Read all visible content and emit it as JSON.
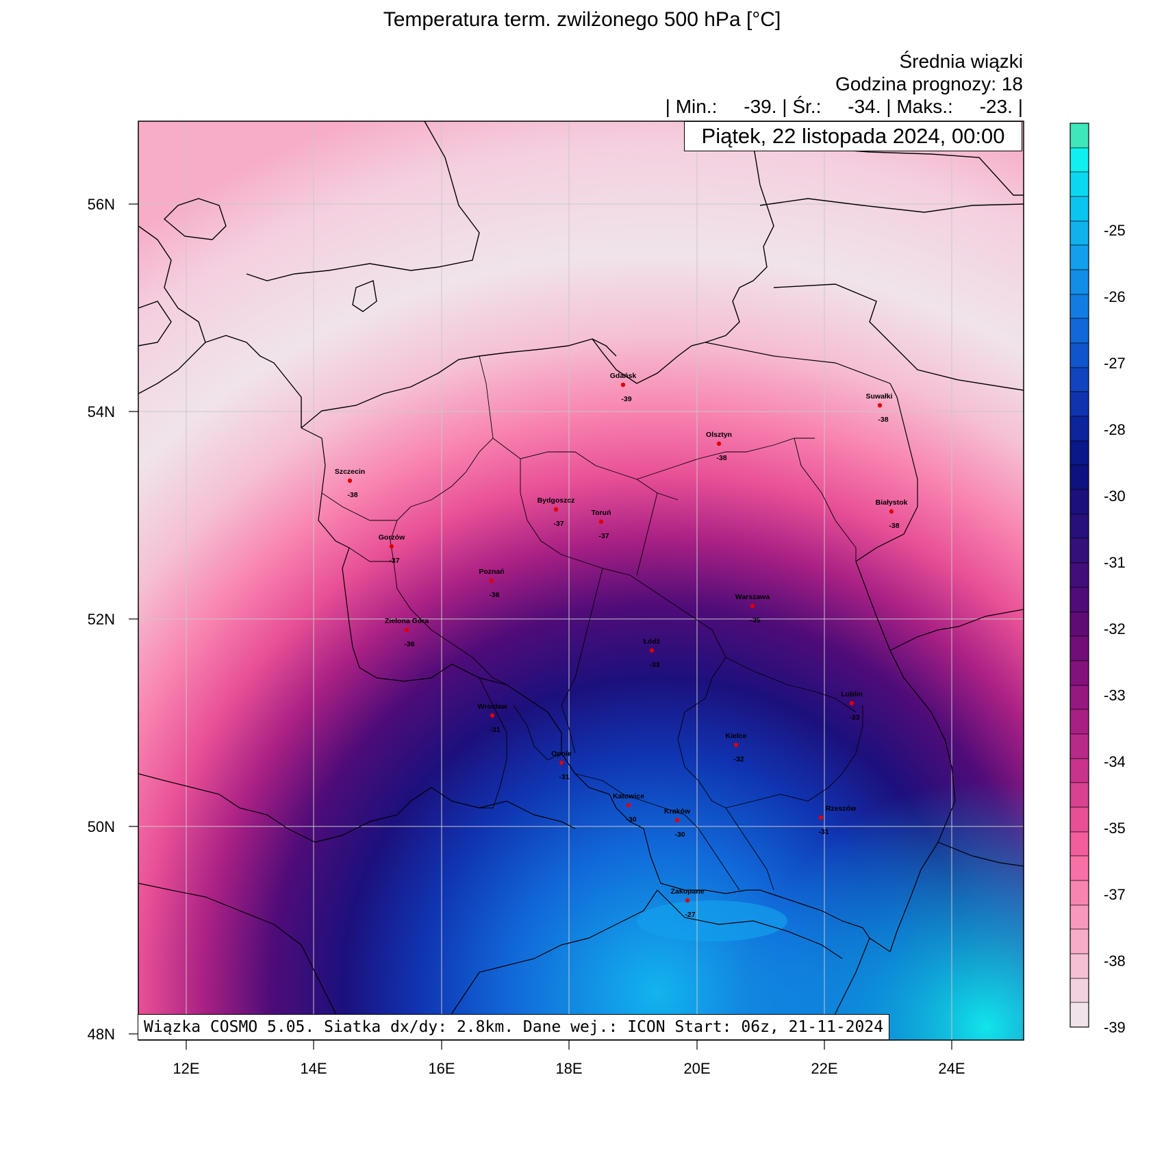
{
  "title": "Temperatura term. zwilżonego 500 hPa [°C]",
  "header": {
    "line1": "Średnia wiązki",
    "line2": "Godzina prognozy: 18",
    "stats_line": "| Min.:     -39. | Śr.:     -34. | Maks.:     -23. |"
  },
  "date_label": "Piątek, 22 listopada 2024, 00:00",
  "footer_info": "Wiązka COSMO 5.05. Siatka dx/dy: 2.8km. Dane wej.: ICON Start: 06z, 21-11-2024",
  "lat_labels": [
    "56N",
    "54N",
    "52N",
    "50N",
    "48N"
  ],
  "lon_labels": [
    "12E",
    "14E",
    "16E",
    "18E",
    "20E",
    "22E",
    "24E"
  ],
  "colorbar_labels": [
    "-25",
    "-26",
    "-27",
    "-28",
    "-30",
    "-31",
    "-32",
    "-33",
    "-34",
    "-35",
    "-37",
    "-38",
    "-39"
  ],
  "colorbar_colors": [
    "#3ee8bb",
    "#10f0f0",
    "#0ad8f2",
    "#0bc4f0",
    "#10b2ee",
    "#12a0ec",
    "#128ee8",
    "#137ce2",
    "#1268d8",
    "#1155cc",
    "#1144be",
    "#1033b0",
    "#0c249c",
    "#0a188a",
    "#0e1280",
    "#1c107c",
    "#28107c",
    "#34107c",
    "#420e7a",
    "#500c78",
    "#600c76",
    "#720e78",
    "#84127c",
    "#961880",
    "#a82084",
    "#b82a88",
    "#c8348c",
    "#d84290",
    "#e85096",
    "#f25e9c",
    "#f770a6",
    "#f884b0",
    "#f898bc",
    "#f7acc8",
    "#f5c0d4",
    "#f2d2df",
    "#f0e4ea"
  ],
  "cities": [
    {
      "name": "Gdańsk",
      "value": "-39"
    },
    {
      "name": "Suwałki",
      "value": "-38"
    },
    {
      "name": "Olsztyn",
      "value": "-38"
    },
    {
      "name": "Szczecin",
      "value": "-38"
    },
    {
      "name": "Bydgoszcz",
      "value": "-37"
    },
    {
      "name": "Toruń",
      "value": "-37"
    },
    {
      "name": "Białystok",
      "value": "-38"
    },
    {
      "name": "Gorzów",
      "value": "-37"
    },
    {
      "name": "Poznań",
      "value": "-36"
    },
    {
      "name": "Warszawa",
      "value": "-35"
    },
    {
      "name": "Zielona Góra",
      "value": "-36"
    },
    {
      "name": "Łódź",
      "value": "-33"
    },
    {
      "name": "Lublin",
      "value": "-33"
    },
    {
      "name": "Wrocław",
      "value": "-31"
    },
    {
      "name": "Kielce",
      "value": "-32"
    },
    {
      "name": "Opole",
      "value": "-31"
    },
    {
      "name": "Katowice",
      "value": "-30"
    },
    {
      "name": "Kraków",
      "value": "-30"
    },
    {
      "name": "Rzeszów",
      "value": "-31"
    },
    {
      "name": "Zakopane",
      "value": "-27"
    }
  ]
}
